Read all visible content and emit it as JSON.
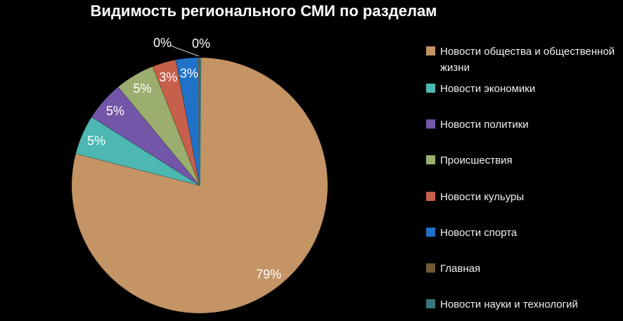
{
  "title": "Видимость регионального СМИ по разделам",
  "background_color": "#000000",
  "title_color": "#FFFFFF",
  "chart_data": {
    "type": "pie",
    "title": "Видимость регионального СМИ по разделам",
    "categories": [
      "Новости общества и общественной жизни",
      "Новости экономики",
      "Новости политики",
      "Происшествия",
      "Новости кульуры",
      "Новости спорта",
      "Главная",
      "Новости науки и технологий"
    ],
    "values": [
      79,
      5,
      5,
      5,
      3,
      3,
      0,
      0
    ],
    "value_labels": [
      "79%",
      "5%",
      "5%",
      "5%",
      "3%",
      "3%",
      "0%",
      "0%"
    ],
    "unit": "%",
    "colors": [
      "#C49465",
      "#4DB8B2",
      "#7356A8",
      "#9BAE6F",
      "#C6604B",
      "#1F72C8",
      "#6E5B35",
      "#37777B"
    ],
    "label_color": "#FFFFFF",
    "legend_text_color": "#F0F0F0",
    "leader_line_color": "#CFCFCF",
    "legend_position": "right",
    "start_angle_deg": 0,
    "direction": "clockwise",
    "grid": false
  }
}
